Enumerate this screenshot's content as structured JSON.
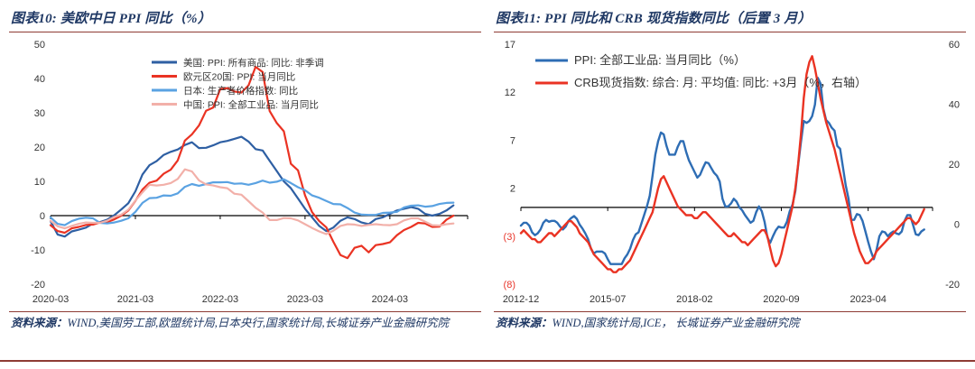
{
  "colors": {
    "heading_text": "#1F3864",
    "divider": "#8E3B34",
    "negative_tick": "#E8372C",
    "axis_text": "#333333",
    "zero_line": "#000000"
  },
  "figures": [
    {
      "source_label": "资料来源：",
      "source_body": "WIND,美国劳工部,欧盟统计局,日本央行,国家统计局,长城证券产业金融研究院"
    },
    {
      "source_label": "资料来源：",
      "source_body": "WIND,国家统计局,ICE， 长城证券产业金融研究院"
    }
  ],
  "chart_data": [
    {
      "type": "line",
      "title": "图表10:  美欧中日 PPI 同比（%）",
      "x_unit": "month",
      "x_start": "2020-03",
      "x_count": 60,
      "x_tick_labels": [
        "2020-03",
        "2021-03",
        "2022-03",
        "2023-03",
        "2024-03"
      ],
      "x_tick_indices": [
        0,
        12,
        24,
        36,
        48
      ],
      "left_axis": {
        "min": -20,
        "max": 50,
        "ticks": [
          50,
          40,
          30,
          20,
          10,
          0,
          -10,
          -20
        ]
      },
      "zero_line": true,
      "grid": false,
      "legend_position": "top-center",
      "series": [
        {
          "name": "美国: PPI: 所有商品: 同比: 非季调",
          "color": "#2E5FA3",
          "axis": "left",
          "values": [
            -1.6,
            -5.5,
            -6.1,
            -4.6,
            -4.1,
            -3.5,
            -2.3,
            -1.9,
            -1.2,
            0.1,
            1.8,
            3.6,
            7.1,
            12.0,
            14.7,
            15.9,
            17.7,
            18.6,
            19.3,
            20.6,
            21.4,
            19.7,
            19.8,
            20.5,
            21.4,
            21.8,
            22.4,
            23.0,
            21.6,
            19.4,
            19.0,
            16.0,
            13.0,
            10.0,
            8.0,
            5.0,
            2.0,
            -0.5,
            -3.0,
            -4.5,
            -3.5,
            -1.5,
            -0.5,
            -1.0,
            -2.0,
            -2.5,
            -1.0,
            -0.5,
            0.5,
            1.5,
            2.0,
            2.5,
            2.0,
            0.5,
            0.0,
            0.5,
            1.5,
            3.0
          ]
        },
        {
          "name": "欧元区20国: PPI: 当月同比",
          "color": "#EA3323",
          "axis": "left",
          "values": [
            -2.8,
            -4.5,
            -5.0,
            -3.7,
            -3.3,
            -2.7,
            -2.6,
            -2.0,
            -1.9,
            -1.1,
            0.0,
            1.5,
            4.3,
            7.6,
            9.6,
            10.2,
            12.2,
            13.4,
            16.1,
            21.9,
            23.7,
            26.3,
            30.6,
            31.5,
            36.9,
            37.2,
            36.2,
            35.9,
            38.0,
            43.4,
            41.9,
            30.5,
            27.0,
            24.6,
            15.1,
            13.2,
            5.9,
            1.0,
            -1.6,
            -3.4,
            -7.6,
            -11.5,
            -12.4,
            -9.4,
            -8.8,
            -10.7,
            -8.6,
            -8.3,
            -7.8,
            -5.7,
            -4.2,
            -3.3,
            -2.1,
            -2.3,
            -3.3,
            -3.2,
            -1.2,
            0.0
          ]
        },
        {
          "name": "日本: 生产者价格指数: 同比",
          "color": "#5AA2E2",
          "axis": "left",
          "values": [
            -0.5,
            -2.4,
            -2.8,
            -1.6,
            -0.9,
            -0.6,
            -0.8,
            -2.1,
            -2.3,
            -2.0,
            -1.5,
            -0.8,
            1.1,
            3.7,
            5.1,
            5.2,
            5.9,
            5.8,
            6.5,
            8.4,
            9.2,
            8.7,
            9.2,
            9.7,
            9.7,
            9.8,
            9.3,
            9.4,
            9.0,
            9.5,
            10.2,
            9.6,
            9.9,
            10.6,
            9.5,
            8.3,
            7.4,
            5.9,
            5.2,
            4.3,
            3.4,
            3.3,
            2.2,
            0.9,
            0.3,
            0.2,
            0.2,
            0.8,
            0.9,
            1.1,
            2.4,
            2.9,
            3.0,
            2.6,
            2.8,
            3.4,
            3.7,
            3.8
          ]
        },
        {
          "name": "中国: PPI: 全部工业品: 当月同比",
          "color": "#F2B0A9",
          "axis": "left",
          "values": [
            -1.5,
            -3.1,
            -3.7,
            -3.0,
            -2.4,
            -2.0,
            -2.1,
            -2.1,
            -1.5,
            -0.4,
            0.3,
            1.7,
            4.4,
            6.8,
            9.0,
            8.8,
            9.0,
            9.5,
            10.7,
            13.5,
            12.9,
            10.3,
            9.1,
            8.8,
            8.3,
            8.0,
            6.4,
            6.1,
            4.2,
            2.3,
            0.9,
            -1.3,
            -1.3,
            -0.7,
            -0.8,
            -1.4,
            -2.5,
            -3.6,
            -4.6,
            -5.4,
            -4.4,
            -3.0,
            -2.5,
            -2.6,
            -3.0,
            -2.7,
            -2.5,
            -2.7,
            -2.8,
            -2.5,
            -1.4,
            -0.8,
            -0.8,
            -1.8,
            -2.8,
            -2.9,
            -2.5,
            -2.3
          ]
        }
      ]
    },
    {
      "type": "line",
      "title": "图表11:  PPI 同比和 CRB 现货指数同比（后置 3 月）",
      "x_unit": "month",
      "x_start": "2012-12",
      "x_count": 148,
      "x_tick_labels": [
        "2012-12",
        "2015-07",
        "2018-02",
        "2020-09",
        "2023-04"
      ],
      "x_tick_indices": [
        0,
        31,
        62,
        93,
        124
      ],
      "left_axis": {
        "min": -8,
        "max": 17,
        "ticks": [
          17,
          12,
          7,
          2,
          -3,
          -8
        ],
        "negatives_in_parentheses": true
      },
      "right_axis": {
        "min": -20,
        "max": 60,
        "ticks": [
          60,
          40,
          20,
          0,
          -20
        ]
      },
      "zero_line": true,
      "grid": false,
      "legend_position": "top-left",
      "series": [
        {
          "name": "PPI: 全部工业品: 当月同比（%）",
          "color": "#2E6DB4",
          "axis": "left",
          "values": [
            -1.9,
            -1.6,
            -1.6,
            -1.9,
            -2.6,
            -2.9,
            -2.7,
            -2.3,
            -1.6,
            -1.3,
            -1.5,
            -1.4,
            -1.4,
            -1.6,
            -2.0,
            -2.3,
            -2.0,
            -1.4,
            -1.1,
            -0.9,
            -1.2,
            -1.8,
            -2.2,
            -2.7,
            -3.3,
            -4.3,
            -4.8,
            -4.6,
            -4.6,
            -4.6,
            -4.8,
            -5.4,
            -5.9,
            -5.9,
            -5.9,
            -5.9,
            -5.9,
            -5.3,
            -4.9,
            -4.3,
            -3.4,
            -2.8,
            -2.6,
            -1.7,
            -0.8,
            0.1,
            1.2,
            3.3,
            5.5,
            6.9,
            7.8,
            7.6,
            6.4,
            5.5,
            5.5,
            5.5,
            6.3,
            6.9,
            6.9,
            5.8,
            4.9,
            4.3,
            3.7,
            3.1,
            3.4,
            4.1,
            4.7,
            4.6,
            4.1,
            3.6,
            3.3,
            2.7,
            0.9,
            0.1,
            0.1,
            0.4,
            0.9,
            0.6,
            0.0,
            -0.3,
            -0.8,
            -1.2,
            -1.6,
            -1.4,
            -0.5,
            0.1,
            -0.4,
            -1.5,
            -3.1,
            -3.7,
            -3.0,
            -2.4,
            -2.0,
            -2.1,
            -2.1,
            -1.5,
            -0.4,
            0.3,
            1.7,
            4.4,
            6.8,
            9.0,
            8.8,
            9.0,
            9.5,
            10.7,
            13.5,
            12.9,
            10.3,
            9.1,
            8.8,
            8.3,
            8.0,
            6.4,
            6.1,
            4.2,
            2.3,
            0.9,
            -1.3,
            -1.3,
            -0.7,
            -0.8,
            -1.4,
            -2.5,
            -3.6,
            -4.6,
            -5.4,
            -4.4,
            -3.0,
            -2.5,
            -2.6,
            -3.0,
            -2.7,
            -2.5,
            -2.7,
            -2.8,
            -2.5,
            -1.4,
            -0.8,
            -0.8,
            -1.8,
            -2.8,
            -2.9,
            -2.5,
            -2.3
          ]
        },
        {
          "name": "CRB现货指数: 综合: 月: 平均值: 同比: +3月（%，右轴）",
          "color": "#EA3323",
          "axis": "right",
          "values": [
            -3,
            -2,
            -3,
            -4,
            -5,
            -5,
            -6,
            -6,
            -5,
            -4,
            -3,
            -3,
            -4,
            -3,
            -2,
            -1,
            0,
            1,
            1,
            0,
            -1,
            -3,
            -4,
            -5,
            -6,
            -8,
            -10,
            -11,
            -12,
            -13,
            -14,
            -15,
            -15,
            -16,
            -16,
            -15,
            -15,
            -14,
            -13,
            -12,
            -10,
            -8,
            -6,
            -4,
            -2,
            0,
            2,
            4,
            8,
            12,
            15,
            16,
            14,
            12,
            10,
            8,
            6,
            5,
            4,
            3,
            3,
            3,
            2,
            2,
            3,
            4,
            4,
            3,
            2,
            1,
            0,
            -1,
            -2,
            -3,
            -4,
            -4,
            -3,
            -4,
            -5,
            -6,
            -6,
            -7,
            -6,
            -5,
            -4,
            -3,
            -2,
            -2,
            -4,
            -8,
            -12,
            -14,
            -13,
            -10,
            -6,
            -2,
            2,
            6,
            12,
            20,
            30,
            42,
            50,
            54,
            56,
            52,
            47,
            42,
            38,
            34,
            31,
            28,
            25,
            21,
            17,
            13,
            9,
            5,
            1,
            -3,
            -6,
            -9,
            -11,
            -13,
            -13,
            -12,
            -11,
            -9,
            -8,
            -7,
            -6,
            -5,
            -4,
            -3,
            -2,
            -1,
            0,
            1,
            2,
            2,
            1,
            0,
            1,
            3,
            5
          ]
        }
      ]
    }
  ]
}
